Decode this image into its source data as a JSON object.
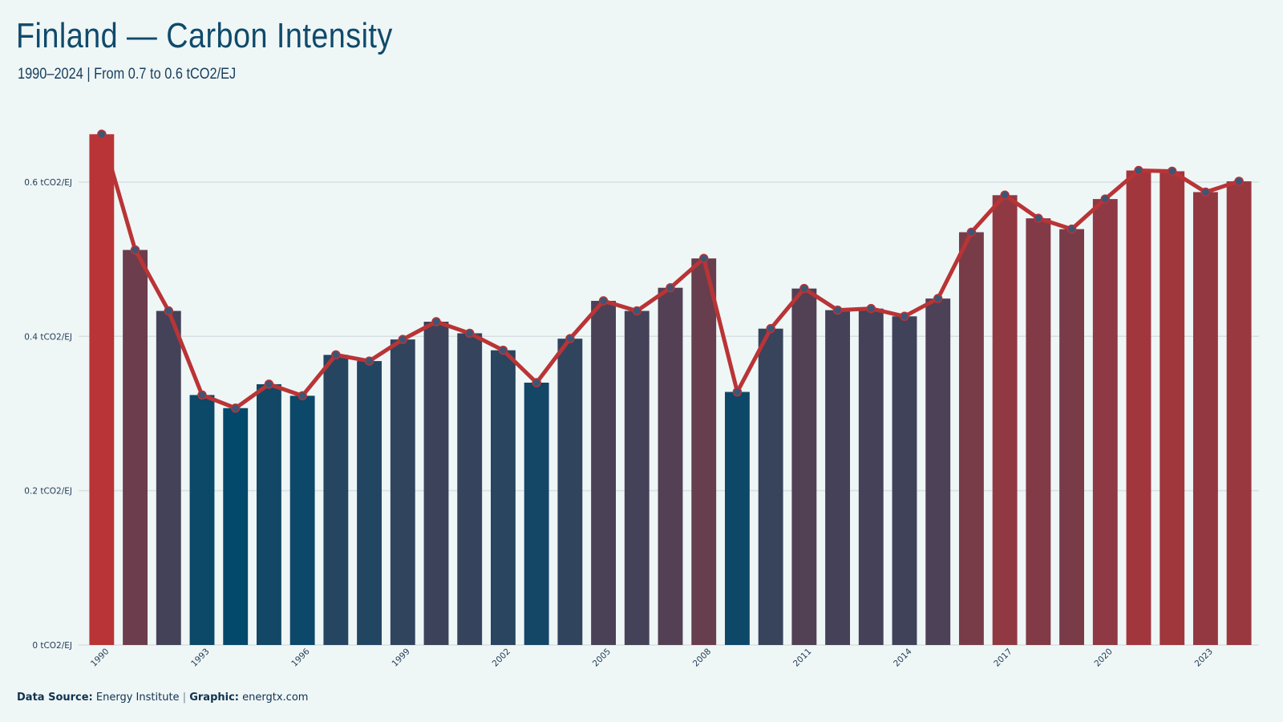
{
  "title": "Finland — Carbon Intensity",
  "subtitle": "1990–2024 | From 0.7 to 0.6 tCO2/EJ",
  "footer": {
    "source_label": "Data Source:",
    "source_value": "Energy Institute",
    "separator": "|",
    "graphic_label": "Graphic:",
    "graphic_value": "energtx.com"
  },
  "colors": {
    "background": "#eff6f6",
    "low": "#03496b",
    "high": "#b93436",
    "line": "#b93436",
    "marker_fill": "#3d5675",
    "grid": "#d7e0e3",
    "text": "#1f3b55"
  },
  "chart_data": {
    "type": "bar",
    "y_unit_suffix": " tCO2/EJ",
    "ylim": [
      0,
      0.68
    ],
    "yticks": [
      0,
      0.2,
      0.4,
      0.6
    ],
    "ytick_labels": [
      "0 tCO2/EJ",
      "0.2 tCO2/EJ",
      "0.4 tCO2/EJ",
      "0.6 tCO2/EJ"
    ],
    "grid": true,
    "categories": [
      1990,
      1991,
      1992,
      1993,
      1994,
      1995,
      1996,
      1997,
      1998,
      1999,
      2000,
      2001,
      2002,
      2003,
      2004,
      2005,
      2006,
      2007,
      2008,
      2009,
      2010,
      2011,
      2012,
      2013,
      2014,
      2015,
      2016,
      2017,
      2018,
      2019,
      2020,
      2021,
      2022,
      2023,
      2024
    ],
    "xtick_labels": [
      "1990",
      "1993",
      "1996",
      "1999",
      "2002",
      "2005",
      "2008",
      "2011",
      "2014",
      "2017",
      "2020",
      "2023"
    ],
    "values": [
      0.662,
      0.512,
      0.433,
      0.324,
      0.307,
      0.338,
      0.323,
      0.376,
      0.368,
      0.396,
      0.419,
      0.404,
      0.382,
      0.34,
      0.397,
      0.446,
      0.433,
      0.463,
      0.501,
      0.328,
      0.41,
      0.462,
      0.434,
      0.436,
      0.426,
      0.449,
      0.535,
      0.583,
      0.553,
      0.539,
      0.578,
      0.615,
      0.614,
      0.587,
      0.601
    ]
  }
}
